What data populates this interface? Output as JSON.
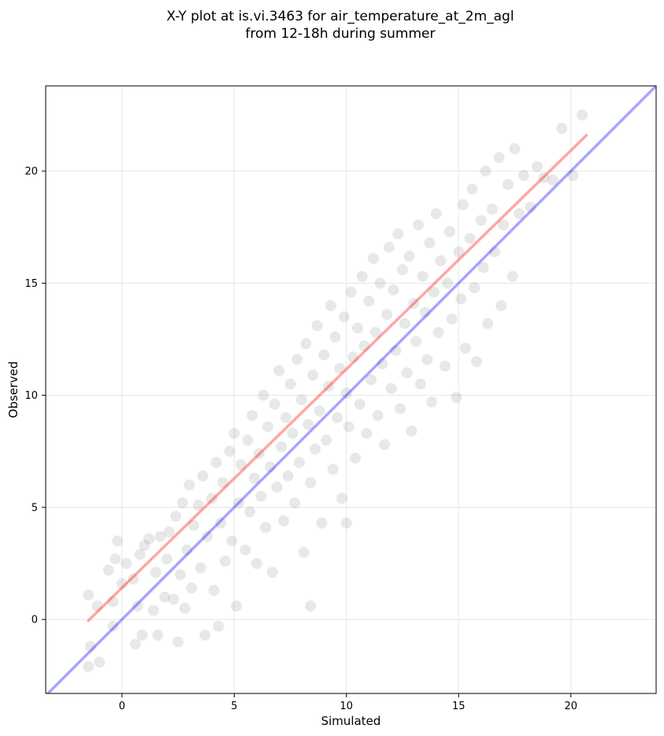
{
  "chart_data": {
    "type": "scatter",
    "title_lines": [
      "X-Y plot at is.vi.3463 for air_temperature_at_2m_agl",
      "from 12-18h during summer"
    ],
    "xlabel": "Simulated",
    "ylabel": "Observed",
    "xlim": [
      -3.4,
      23.8
    ],
    "ylim": [
      -3.3,
      23.8
    ],
    "xticks": [
      0,
      5,
      10,
      15,
      20
    ],
    "yticks": [
      0,
      5,
      10,
      15,
      20
    ],
    "grid": true,
    "point_color": "#000000",
    "point_alpha": 0.09,
    "regression_line": {
      "color": "#ff0000",
      "alpha": 0.35,
      "x": [
        -1.5,
        20.7
      ],
      "y": [
        -0.05,
        21.6
      ]
    },
    "identity_line": {
      "color": "#0000ff",
      "alpha": 0.35,
      "x": [
        -3.4,
        23.8
      ],
      "y": [
        -3.4,
        23.8
      ]
    },
    "points": [
      [
        -1.5,
        -2.1
      ],
      [
        -1.4,
        -1.2
      ],
      [
        -1.5,
        1.1
      ],
      [
        -1.0,
        -1.9
      ],
      [
        -1.1,
        0.6
      ],
      [
        -0.6,
        2.2
      ],
      [
        -0.4,
        -0.3
      ],
      [
        -0.4,
        0.8
      ],
      [
        -0.3,
        2.7
      ],
      [
        -0.2,
        3.5
      ],
      [
        0.0,
        1.6
      ],
      [
        0.2,
        2.5
      ],
      [
        0.5,
        1.8
      ],
      [
        0.6,
        -1.1
      ],
      [
        0.7,
        0.6
      ],
      [
        0.8,
        2.9
      ],
      [
        0.9,
        -0.7
      ],
      [
        1.0,
        3.3
      ],
      [
        1.2,
        3.6
      ],
      [
        1.4,
        0.4
      ],
      [
        1.5,
        2.1
      ],
      [
        1.6,
        -0.7
      ],
      [
        1.7,
        3.7
      ],
      [
        1.9,
        1.0
      ],
      [
        2.0,
        2.7
      ],
      [
        2.1,
        3.9
      ],
      [
        2.3,
        0.9
      ],
      [
        2.4,
        4.6
      ],
      [
        2.5,
        -1.0
      ],
      [
        2.6,
        2.0
      ],
      [
        2.7,
        5.2
      ],
      [
        2.8,
        0.5
      ],
      [
        2.9,
        3.1
      ],
      [
        3.0,
        6.0
      ],
      [
        3.1,
        1.4
      ],
      [
        3.2,
        4.2
      ],
      [
        3.4,
        5.1
      ],
      [
        3.5,
        2.3
      ],
      [
        3.6,
        6.4
      ],
      [
        3.7,
        -0.7
      ],
      [
        3.8,
        3.7
      ],
      [
        4.0,
        5.4
      ],
      [
        4.1,
        1.3
      ],
      [
        4.2,
        7.0
      ],
      [
        4.3,
        -0.3
      ],
      [
        4.4,
        4.3
      ],
      [
        4.5,
        6.1
      ],
      [
        4.6,
        2.6
      ],
      [
        4.8,
        7.5
      ],
      [
        4.9,
        3.5
      ],
      [
        5.0,
        8.3
      ],
      [
        5.1,
        0.6
      ],
      [
        5.2,
        5.2
      ],
      [
        5.3,
        6.9
      ],
      [
        5.5,
        3.1
      ],
      [
        5.6,
        8.0
      ],
      [
        5.7,
        4.8
      ],
      [
        5.8,
        9.1
      ],
      [
        5.9,
        6.3
      ],
      [
        6.0,
        2.5
      ],
      [
        6.1,
        7.4
      ],
      [
        6.2,
        5.5
      ],
      [
        6.3,
        10.0
      ],
      [
        6.4,
        4.1
      ],
      [
        6.5,
        8.6
      ],
      [
        6.6,
        6.8
      ],
      [
        6.7,
        2.1
      ],
      [
        6.8,
        9.6
      ],
      [
        6.9,
        5.9
      ],
      [
        7.0,
        11.1
      ],
      [
        7.1,
        7.7
      ],
      [
        7.2,
        4.4
      ],
      [
        7.3,
        9.0
      ],
      [
        7.4,
        6.4
      ],
      [
        7.5,
        10.5
      ],
      [
        7.6,
        8.3
      ],
      [
        7.7,
        5.2
      ],
      [
        7.8,
        11.6
      ],
      [
        7.9,
        7.0
      ],
      [
        8.0,
        9.8
      ],
      [
        8.1,
        3.0
      ],
      [
        8.2,
        12.3
      ],
      [
        8.3,
        8.7
      ],
      [
        8.4,
        0.6
      ],
      [
        8.4,
        6.1
      ],
      [
        8.5,
        10.9
      ],
      [
        8.6,
        7.6
      ],
      [
        8.7,
        13.1
      ],
      [
        8.8,
        9.3
      ],
      [
        8.9,
        4.3
      ],
      [
        9.0,
        11.8
      ],
      [
        9.1,
        8.0
      ],
      [
        9.2,
        10.4
      ],
      [
        9.3,
        14.0
      ],
      [
        9.4,
        6.7
      ],
      [
        9.5,
        12.6
      ],
      [
        9.6,
        9.0
      ],
      [
        9.7,
        11.2
      ],
      [
        9.8,
        5.4
      ],
      [
        9.9,
        13.5
      ],
      [
        10.0,
        10.1
      ],
      [
        10.0,
        4.3
      ],
      [
        10.1,
        8.6
      ],
      [
        10.2,
        14.6
      ],
      [
        10.3,
        11.7
      ],
      [
        10.4,
        7.2
      ],
      [
        10.5,
        13.0
      ],
      [
        10.6,
        9.6
      ],
      [
        10.7,
        15.3
      ],
      [
        10.8,
        12.2
      ],
      [
        10.9,
        8.3
      ],
      [
        11.0,
        14.2
      ],
      [
        11.1,
        10.7
      ],
      [
        11.2,
        16.1
      ],
      [
        11.3,
        12.8
      ],
      [
        11.4,
        9.1
      ],
      [
        11.5,
        15.0
      ],
      [
        11.6,
        11.4
      ],
      [
        11.7,
        7.8
      ],
      [
        11.8,
        13.6
      ],
      [
        11.9,
        16.6
      ],
      [
        12.0,
        10.3
      ],
      [
        12.1,
        14.7
      ],
      [
        12.2,
        12.0
      ],
      [
        12.3,
        17.2
      ],
      [
        12.4,
        9.4
      ],
      [
        12.5,
        15.6
      ],
      [
        12.6,
        13.2
      ],
      [
        12.7,
        11.0
      ],
      [
        12.8,
        16.2
      ],
      [
        12.9,
        8.4
      ],
      [
        13.0,
        14.1
      ],
      [
        13.1,
        12.4
      ],
      [
        13.2,
        17.6
      ],
      [
        13.3,
        10.5
      ],
      [
        13.4,
        15.3
      ],
      [
        13.5,
        13.7
      ],
      [
        13.6,
        11.6
      ],
      [
        13.7,
        16.8
      ],
      [
        13.8,
        9.7
      ],
      [
        13.9,
        14.6
      ],
      [
        14.0,
        18.1
      ],
      [
        14.1,
        12.8
      ],
      [
        14.2,
        16.0
      ],
      [
        14.4,
        11.3
      ],
      [
        14.5,
        15.0
      ],
      [
        14.6,
        17.3
      ],
      [
        14.7,
        13.4
      ],
      [
        14.9,
        9.9
      ],
      [
        15.0,
        16.4
      ],
      [
        15.1,
        14.3
      ],
      [
        15.2,
        18.5
      ],
      [
        15.3,
        12.1
      ],
      [
        15.5,
        17.0
      ],
      [
        15.6,
        19.2
      ],
      [
        15.7,
        14.8
      ],
      [
        15.8,
        11.5
      ],
      [
        16.0,
        17.8
      ],
      [
        16.1,
        15.7
      ],
      [
        16.2,
        20.0
      ],
      [
        16.3,
        13.2
      ],
      [
        16.5,
        18.3
      ],
      [
        16.6,
        16.4
      ],
      [
        16.8,
        20.6
      ],
      [
        16.9,
        14.0
      ],
      [
        17.0,
        17.6
      ],
      [
        17.2,
        19.4
      ],
      [
        17.4,
        15.3
      ],
      [
        17.5,
        21.0
      ],
      [
        17.7,
        18.1
      ],
      [
        17.9,
        19.8
      ],
      [
        18.2,
        18.4
      ],
      [
        18.5,
        20.2
      ],
      [
        18.8,
        19.7
      ],
      [
        19.2,
        19.6
      ],
      [
        19.6,
        21.9
      ],
      [
        20.5,
        22.5
      ],
      [
        20.1,
        19.8
      ]
    ]
  }
}
